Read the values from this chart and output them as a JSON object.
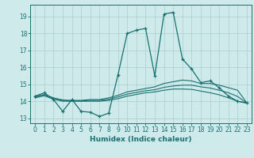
{
  "xlabel": "Humidex (Indice chaleur)",
  "background_color": "#ceeaea",
  "grid_color": "#aacece",
  "line_color": "#1a7070",
  "xlim": [
    -0.5,
    23.5
  ],
  "ylim": [
    12.7,
    19.7
  ],
  "yticks": [
    13,
    14,
    15,
    16,
    17,
    18,
    19
  ],
  "xticks": [
    0,
    1,
    2,
    3,
    4,
    5,
    6,
    7,
    8,
    9,
    10,
    11,
    12,
    13,
    14,
    15,
    16,
    17,
    18,
    19,
    20,
    21,
    22,
    23
  ],
  "line1_x": [
    0,
    1,
    2,
    3,
    4,
    5,
    6,
    7,
    8,
    9,
    10,
    11,
    12,
    13,
    14,
    15,
    16,
    17,
    18,
    19,
    20,
    21,
    22,
    23
  ],
  "line1_y": [
    14.3,
    14.5,
    14.1,
    13.4,
    14.1,
    13.4,
    13.35,
    13.1,
    13.3,
    15.55,
    18.0,
    18.2,
    18.3,
    15.5,
    19.15,
    19.25,
    16.5,
    15.9,
    15.1,
    15.2,
    14.8,
    14.3,
    14.0,
    13.9
  ],
  "line2_x": [
    0,
    1,
    2,
    3,
    4,
    5,
    6,
    7,
    8,
    9,
    10,
    11,
    12,
    13,
    14,
    15,
    16,
    17,
    18,
    19,
    20,
    21,
    22,
    23
  ],
  "line2_y": [
    14.25,
    14.4,
    14.2,
    14.05,
    14.05,
    14.05,
    14.1,
    14.1,
    14.2,
    14.35,
    14.55,
    14.65,
    14.75,
    14.85,
    15.05,
    15.15,
    15.25,
    15.2,
    15.05,
    15.05,
    14.95,
    14.8,
    14.65,
    13.9
  ],
  "line3_x": [
    0,
    1,
    2,
    3,
    4,
    5,
    6,
    7,
    8,
    9,
    10,
    11,
    12,
    13,
    14,
    15,
    16,
    17,
    18,
    19,
    20,
    21,
    22,
    23
  ],
  "line3_y": [
    14.2,
    14.32,
    14.12,
    14.0,
    14.0,
    14.0,
    14.0,
    14.0,
    14.05,
    14.15,
    14.3,
    14.4,
    14.5,
    14.55,
    14.65,
    14.72,
    14.72,
    14.7,
    14.6,
    14.5,
    14.38,
    14.2,
    14.0,
    13.88
  ],
  "line4_x": [
    0,
    1,
    2,
    3,
    4,
    5,
    6,
    7,
    8,
    9,
    10,
    11,
    12,
    13,
    14,
    15,
    16,
    17,
    18,
    19,
    20,
    21,
    22,
    23
  ],
  "line4_y": [
    14.28,
    14.38,
    14.18,
    14.08,
    14.02,
    14.02,
    14.05,
    14.05,
    14.12,
    14.25,
    14.42,
    14.52,
    14.62,
    14.68,
    14.82,
    14.9,
    14.95,
    14.95,
    14.85,
    14.78,
    14.65,
    14.5,
    14.28,
    13.88
  ]
}
